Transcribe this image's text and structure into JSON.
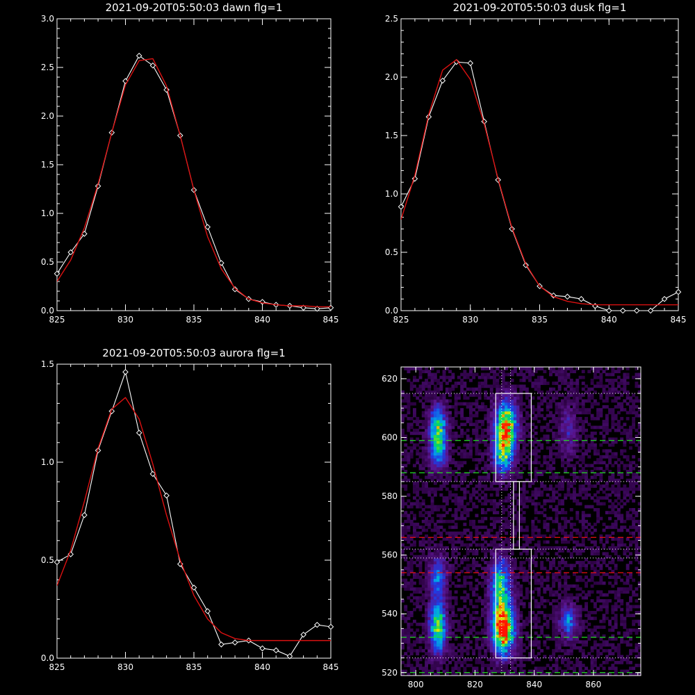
{
  "colors": {
    "background": "#000000",
    "axes": "#ffffff",
    "data_line": "#ffffff",
    "fit_line": "#dd1111",
    "dashed_green": "#22dd22",
    "dashed_red": "#ee1111",
    "dotted": "#ffffff"
  },
  "chart_data": [
    {
      "type": "line",
      "title": "2021-09-20T05:50:03 dawn flg=1",
      "xlim": [
        825,
        845
      ],
      "ylim": [
        0,
        3.0
      ],
      "x_ticks": [
        "825",
        "830",
        "835",
        "840",
        "845"
      ],
      "y_ticks": [
        "0.0",
        "0.5",
        "1.0",
        "1.5",
        "2.0",
        "2.5",
        "3.0"
      ],
      "series": [
        {
          "role": "data",
          "marker": "diamond",
          "x": [
            825,
            826,
            827,
            828,
            829,
            830,
            831,
            832,
            833,
            834,
            835,
            836,
            837,
            838,
            839,
            840,
            841,
            842,
            843,
            844,
            845
          ],
          "y": [
            0.38,
            0.6,
            0.79,
            1.28,
            1.83,
            2.36,
            2.62,
            2.52,
            2.27,
            1.8,
            1.24,
            0.86,
            0.49,
            0.22,
            0.12,
            0.09,
            0.06,
            0.05,
            0.03,
            0.02,
            0.03
          ]
        },
        {
          "role": "fit",
          "x": [
            825,
            826,
            827,
            828,
            829,
            830,
            831,
            832,
            833,
            834,
            835,
            836,
            837,
            838,
            839,
            840,
            841,
            842,
            843,
            844,
            845
          ],
          "y": [
            0.3,
            0.52,
            0.85,
            1.3,
            1.83,
            2.32,
            2.57,
            2.59,
            2.31,
            1.8,
            1.24,
            0.76,
            0.43,
            0.23,
            0.12,
            0.08,
            0.06,
            0.05,
            0.05,
            0.04,
            0.04
          ]
        }
      ]
    },
    {
      "type": "line",
      "title": "2021-09-20T05:50:03 dusk flg=1",
      "xlim": [
        825,
        845
      ],
      "ylim": [
        0,
        2.5
      ],
      "x_ticks": [
        "825",
        "830",
        "835",
        "840",
        "845"
      ],
      "y_ticks": [
        "0.0",
        "0.5",
        "1.0",
        "1.5",
        "2.0",
        "2.5"
      ],
      "series": [
        {
          "role": "data",
          "marker": "diamond",
          "x": [
            825,
            826,
            827,
            828,
            829,
            830,
            831,
            832,
            833,
            834,
            835,
            836,
            837,
            838,
            839,
            840,
            841,
            842,
            843,
            844,
            845
          ],
          "y": [
            0.89,
            1.13,
            1.66,
            1.97,
            2.13,
            2.12,
            1.62,
            1.12,
            0.7,
            0.39,
            0.21,
            0.13,
            0.12,
            0.1,
            0.04,
            0.0,
            0.0,
            0.0,
            0.0,
            0.1,
            0.16
          ]
        },
        {
          "role": "fit",
          "x": [
            825,
            826,
            827,
            828,
            829,
            830,
            831,
            832,
            833,
            834,
            835,
            836,
            837,
            838,
            839,
            840,
            841,
            842,
            843,
            844,
            845
          ],
          "y": [
            0.78,
            1.16,
            1.68,
            2.06,
            2.15,
            1.98,
            1.6,
            1.13,
            0.71,
            0.4,
            0.21,
            0.12,
            0.08,
            0.06,
            0.05,
            0.05,
            0.05,
            0.05,
            0.05,
            0.05,
            0.05
          ]
        }
      ]
    },
    {
      "type": "line",
      "title": "2021-09-20T05:50:03 aurora flg=1",
      "xlim": [
        825,
        845
      ],
      "ylim": [
        0,
        1.5
      ],
      "x_ticks": [
        "825",
        "830",
        "835",
        "840",
        "845"
      ],
      "y_ticks": [
        "0.0",
        "0.5",
        "1.0",
        "1.5"
      ],
      "series": [
        {
          "role": "data",
          "marker": "diamond",
          "x": [
            825,
            826,
            827,
            828,
            829,
            830,
            831,
            832,
            833,
            834,
            835,
            836,
            837,
            838,
            839,
            840,
            841,
            842,
            843,
            844,
            845
          ],
          "y": [
            0.49,
            0.53,
            0.73,
            1.06,
            1.26,
            1.46,
            1.15,
            0.94,
            0.83,
            0.48,
            0.36,
            0.24,
            0.07,
            0.08,
            0.09,
            0.05,
            0.04,
            0.01,
            0.12,
            0.17,
            0.16
          ]
        },
        {
          "role": "fit",
          "x": [
            825,
            826,
            827,
            828,
            829,
            830,
            831,
            832,
            833,
            834,
            835,
            836,
            837,
            838,
            839,
            840,
            841,
            842,
            843,
            844,
            845
          ],
          "y": [
            0.37,
            0.55,
            0.8,
            1.07,
            1.27,
            1.33,
            1.22,
            0.99,
            0.73,
            0.5,
            0.32,
            0.2,
            0.13,
            0.1,
            0.09,
            0.09,
            0.09,
            0.09,
            0.09,
            0.09,
            0.09
          ]
        }
      ]
    },
    {
      "type": "heatmap",
      "xlim": [
        795,
        876
      ],
      "ylim": [
        519,
        624
      ],
      "x_ticks": [
        "800",
        "820",
        "840",
        "860"
      ],
      "y_ticks": [
        "520",
        "540",
        "560",
        "580",
        "600",
        "620"
      ],
      "colormap": "rainbow",
      "blobs": [
        {
          "x": 807,
          "y": 603,
          "sx": 2.0,
          "sy": 5.0,
          "a": 0.55
        },
        {
          "x": 807,
          "y": 594,
          "sx": 2.0,
          "sy": 4.0,
          "a": 0.35
        },
        {
          "x": 830,
          "y": 604,
          "sx": 2.5,
          "sy": 5.5,
          "a": 0.75
        },
        {
          "x": 829,
          "y": 594,
          "sx": 2.3,
          "sy": 5.0,
          "a": 0.5
        },
        {
          "x": 807,
          "y": 535,
          "sx": 2.0,
          "sy": 6.0,
          "a": 0.6
        },
        {
          "x": 807,
          "y": 552,
          "sx": 2.0,
          "sy": 5.0,
          "a": 0.35
        },
        {
          "x": 829,
          "y": 535,
          "sx": 2.5,
          "sy": 6.0,
          "a": 0.95
        },
        {
          "x": 828,
          "y": 550,
          "sx": 2.3,
          "sy": 6.0,
          "a": 0.5
        },
        {
          "x": 851,
          "y": 537,
          "sx": 2.0,
          "sy": 4.0,
          "a": 0.35
        },
        {
          "x": 851,
          "y": 602,
          "sx": 2.0,
          "sy": 6.0,
          "a": 0.18
        }
      ],
      "boxes": [
        {
          "x0": 827,
          "x1": 839,
          "y0": 585,
          "y1": 615
        },
        {
          "x0": 827,
          "x1": 839,
          "y0": 525,
          "y1": 562
        },
        {
          "x0": 833,
          "x1": 835,
          "y0": 562,
          "y1": 585
        }
      ],
      "hlines_green_dashed": [
        599,
        588,
        532,
        520
      ],
      "hlines_red_dashed": [
        566,
        554
      ],
      "hlines_dotted": [
        615,
        585,
        562,
        559,
        525
      ],
      "vlines_dotted": [
        829,
        832
      ]
    }
  ]
}
